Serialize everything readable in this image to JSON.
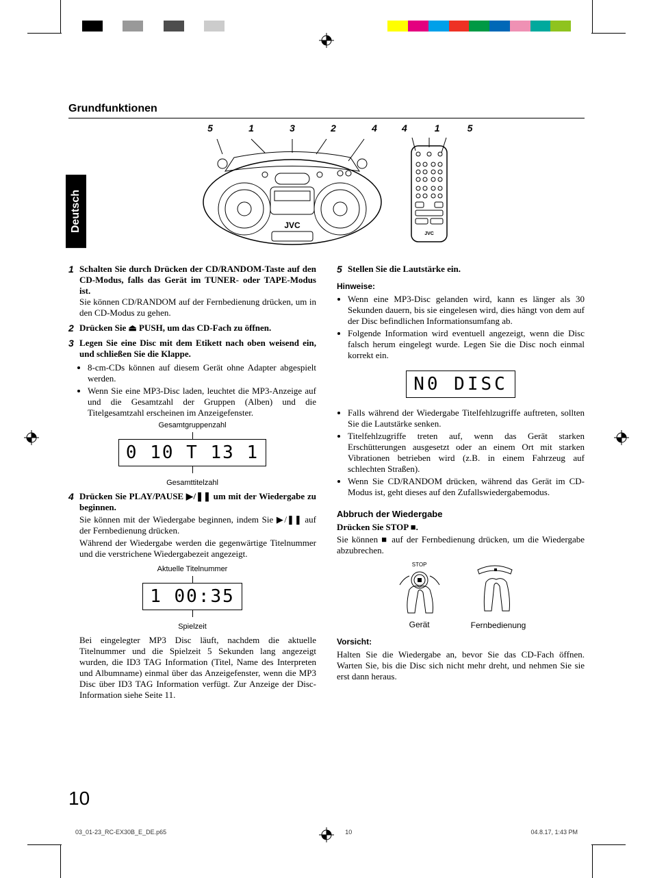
{
  "colorbar": [
    "#ffffff",
    "#000000",
    "#ffffff",
    "#999999",
    "#ffffff",
    "#4d4d4d",
    "#ffffff",
    "#cccccc",
    "#ffffff",
    "#ffffff",
    "#ffffff",
    "#ffffff",
    "#ffffff",
    "#ffffff",
    "#ffffff",
    "#ffffff",
    "#ffff00",
    "#e4007f",
    "#00a0e9",
    "#ee3124",
    "#009944",
    "#0068b7",
    "#ef91b4",
    "#00a99d",
    "#8fc31f",
    "#ffffff"
  ],
  "section_title": "Grundfunktionen",
  "language_tab": "Deutsch",
  "brand": "JVC",
  "fig_refs_device": [
    "5",
    "1",
    "3",
    "2",
    "4"
  ],
  "fig_refs_remote": [
    "4",
    "1",
    "5"
  ],
  "steps": {
    "s1": {
      "n": "1",
      "bold": "Schalten Sie durch Drücken der CD/RANDOM-Taste auf den CD-Modus, falls das Gerät im TUNER- oder TAPE-Modus ist.",
      "text": "Sie können CD/RANDOM auf der Fernbedienung drücken, um in den CD-Modus zu gehen."
    },
    "s2": {
      "n": "2",
      "bold": "Drücken Sie ⏏ PUSH, um das CD-Fach zu öffnen."
    },
    "s3": {
      "n": "3",
      "bold": "Legen Sie eine Disc mit dem Etikett nach oben weisend ein, und schließen Sie die Klappe.",
      "b1": "8-cm-CDs können auf diesem Gerät ohne Adapter abgespielt werden.",
      "b2": "Wenn Sie eine MP3-Disc laden, leuchtet die MP3-Anzeige auf und die Gesamtzahl der Gruppen (Alben) und die Titelgesamtzahl erscheinen im Anzeigefenster."
    },
    "s4": {
      "n": "4",
      "bold": "Drücken Sie PLAY/PAUSE ▶/❚❚ um mit der Wiedergabe zu beginnen.",
      "p1": "Sie können mit der Wiedergabe beginnen, indem Sie ▶/❚❚ auf der Fernbedienung drücken.",
      "p2": "Während der Wiedergabe werden die gegenwärtige Titelnummer und die verstrichene Wiedergabezeit angezeigt."
    },
    "s5": {
      "n": "5",
      "bold": "Stellen Sie die Lautstärke ein."
    }
  },
  "caption_groups": "Gesamtgruppenzahl",
  "caption_tracks": "Gesamttitelzahl",
  "caption_tracknum": "Aktuelle Titelnummer",
  "caption_playtime": "Spielzeit",
  "lcd_groups": "0 10  T 13 1",
  "lcd_time": "1  00:35",
  "lcd_nodisc": "N0  DISC",
  "mp3_paragraph": "Bei eingelegter MP3 Disc läuft, nachdem die aktuelle Titelnummer und die Spielzeit 5 Sekunden lang angezeigt wurden, die ID3 TAG Information (Titel, Name des Interpreten und Albumname) einmal über das Anzeigefenster, wenn die MP3 Disc über ID3 TAG Information verfügt. Zur Anzeige der Disc-Information siehe Seite 11.",
  "hints_title": "Hinweise:",
  "hints": {
    "h1": "Wenn eine MP3-Disc gelanden wird, kann es länger als 30 Sekunden dauern, bis sie eingelesen wird, dies hängt von dem auf der Disc befindlichen Informationsumfang ab.",
    "h2": "Folgende Information wird eventuell angezeigt, wenn die Disc falsch herum eingelegt wurde. Legen Sie die Disc noch einmal korrekt ein.",
    "h3": "Falls während der Wiedergabe Titelfehlzugriffe auftreten, sollten Sie die Lautstärke senken.",
    "h4": "Titelfehlzugriffe treten auf, wenn das Gerät starken Erschütterungen ausgesetzt oder an einem Ort mit starken Vibrationen betrieben wird (z.B. in einem Fahrzeug auf schlechten Straßen).",
    "h5": "Wenn Sie CD/RANDOM drücken, während das Gerät im CD-Modus ist, geht dieses auf den Zufallswiedergabemodus."
  },
  "abort_title": "Abbruch der Wiedergabe",
  "abort_bold": "Drücken Sie STOP ■.",
  "abort_text": "Sie können ■ auf der Fernbedienung drücken, um die Wiedergabe abzubrechen.",
  "stop_label": "STOP",
  "device_label": "Gerät",
  "remote_label": "Fernbedienung",
  "caution_title": "Vorsicht:",
  "caution_text": "Halten Sie die Wiedergabe an, bevor Sie das CD-Fach öffnen. Warten Sie, bis die Disc sich nicht mehr dreht, und nehmen Sie sie erst dann heraus.",
  "page_number": "10",
  "footer_file": "03_01-23_RC-EX30B_E_DE.p65",
  "footer_pg": "10",
  "footer_date": "04.8.17, 1:43 PM"
}
